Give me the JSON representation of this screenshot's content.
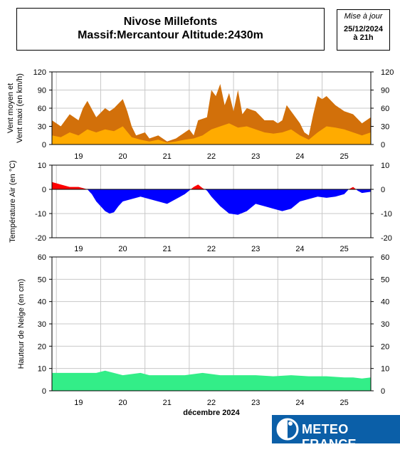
{
  "header": {
    "title_line1": "Nivose Millefonts",
    "title_line2": "Massif:Mercantour Altitude:2430m",
    "update_label": "Mise à jour",
    "update_date": "25/12/2024",
    "update_time": "à 21h"
  },
  "footer": {
    "month_label": "décembre 2024",
    "logo_text": "METEO FRANCE"
  },
  "chart_data": [
    {
      "type": "area",
      "ylabel": [
        "Vent moyen et",
        "Vent maxi (en km/h)"
      ],
      "ylim": [
        0,
        120
      ],
      "yticks": [
        0,
        30,
        60,
        90,
        120
      ],
      "x_day_labels": [
        "19",
        "20",
        "21",
        "22",
        "23",
        "24",
        "25"
      ],
      "xlim": [
        18.4,
        25.6
      ],
      "grid": true,
      "colors": {
        "max": "#d2700a",
        "mean": "#ffab00"
      },
      "series": [
        {
          "key": "max",
          "x": [
            18.4,
            18.6,
            18.8,
            19.0,
            19.1,
            19.2,
            19.4,
            19.6,
            19.7,
            19.8,
            20.0,
            20.1,
            20.2,
            20.3,
            20.5,
            20.6,
            20.8,
            21.0,
            21.2,
            21.4,
            21.5,
            21.6,
            21.7,
            21.9,
            22.0,
            22.1,
            22.2,
            22.3,
            22.4,
            22.5,
            22.6,
            22.7,
            22.8,
            23.0,
            23.2,
            23.4,
            23.5,
            23.6,
            23.7,
            23.9,
            24.0,
            24.1,
            24.2,
            24.3,
            24.4,
            24.5,
            24.6,
            24.8,
            25.0,
            25.2,
            25.4,
            25.6
          ],
          "values": [
            40,
            30,
            50,
            40,
            60,
            72,
            45,
            60,
            55,
            60,
            75,
            55,
            30,
            15,
            20,
            10,
            15,
            5,
            10,
            20,
            25,
            15,
            40,
            45,
            90,
            80,
            100,
            65,
            85,
            55,
            90,
            50,
            60,
            55,
            40,
            40,
            35,
            40,
            65,
            45,
            35,
            20,
            15,
            50,
            80,
            75,
            80,
            65,
            55,
            50,
            35,
            45
          ]
        },
        {
          "key": "mean",
          "x": [
            18.4,
            18.6,
            18.8,
            19.0,
            19.2,
            19.4,
            19.6,
            19.8,
            20.0,
            20.2,
            20.4,
            20.6,
            20.8,
            21.0,
            21.2,
            21.4,
            21.6,
            21.8,
            22.0,
            22.2,
            22.4,
            22.6,
            22.8,
            23.0,
            23.2,
            23.4,
            23.6,
            23.8,
            24.0,
            24.2,
            24.4,
            24.6,
            24.8,
            25.0,
            25.2,
            25.4,
            25.6
          ],
          "values": [
            15,
            12,
            20,
            15,
            25,
            20,
            25,
            22,
            30,
            12,
            8,
            5,
            8,
            3,
            5,
            8,
            10,
            15,
            25,
            30,
            35,
            28,
            30,
            25,
            20,
            18,
            20,
            25,
            15,
            8,
            20,
            30,
            28,
            25,
            20,
            15,
            20
          ]
        }
      ]
    },
    {
      "type": "area",
      "ylabel": [
        "Température Air (en °C)"
      ],
      "ylim": [
        -20,
        10
      ],
      "yticks": [
        -20,
        -10,
        0,
        10
      ],
      "x_day_labels": [
        "19",
        "20",
        "21",
        "22",
        "23",
        "24",
        "25"
      ],
      "xlim": [
        18.4,
        25.6
      ],
      "grid": true,
      "colors": {
        "positive": "#ff0000",
        "negative": "#0000ff"
      },
      "series": [
        {
          "key": "temperature",
          "x": [
            18.4,
            18.6,
            18.8,
            19.0,
            19.1,
            19.2,
            19.3,
            19.4,
            19.5,
            19.6,
            19.7,
            19.8,
            19.9,
            20.0,
            20.2,
            20.4,
            20.6,
            20.8,
            21.0,
            21.2,
            21.4,
            21.5,
            21.6,
            21.7,
            21.8,
            21.9,
            22.0,
            22.2,
            22.4,
            22.6,
            22.8,
            23.0,
            23.2,
            23.4,
            23.6,
            23.8,
            24.0,
            24.2,
            24.4,
            24.6,
            24.8,
            25.0,
            25.1,
            25.2,
            25.3,
            25.4,
            25.6
          ],
          "values": [
            3,
            2,
            1,
            1,
            0.5,
            0,
            -2,
            -5,
            -7,
            -9,
            -10,
            -9.5,
            -7,
            -5,
            -4,
            -3,
            -4,
            -5,
            -6,
            -4,
            -2,
            -0.5,
            1,
            2,
            0.5,
            -0.5,
            -3,
            -7,
            -10,
            -10.5,
            -9,
            -6,
            -7,
            -8,
            -9,
            -8,
            -5,
            -4,
            -3,
            -3.5,
            -3,
            -2,
            0,
            1,
            -0.5,
            -1.5,
            -1
          ]
        }
      ]
    },
    {
      "type": "area",
      "ylabel": [
        "Hauteur de Neige (en cm)"
      ],
      "ylim": [
        0,
        60
      ],
      "yticks": [
        0,
        10,
        20,
        30,
        40,
        50,
        60
      ],
      "x_day_labels": [
        "19",
        "20",
        "21",
        "22",
        "23",
        "24",
        "25"
      ],
      "xlim": [
        18.4,
        25.6
      ],
      "grid": true,
      "colors": {
        "snow": "#33ee88"
      },
      "series": [
        {
          "key": "snow_depth",
          "x": [
            18.4,
            19.0,
            19.4,
            19.6,
            20.0,
            20.4,
            20.6,
            21.0,
            21.4,
            21.8,
            22.2,
            22.6,
            23.0,
            23.4,
            23.8,
            24.2,
            24.6,
            25.0,
            25.2,
            25.4,
            25.6
          ],
          "values": [
            8,
            8,
            8,
            9,
            7,
            8,
            7,
            7,
            7,
            8,
            7,
            7,
            7,
            6.5,
            7,
            6.5,
            6.5,
            6,
            6,
            5.5,
            6
          ]
        }
      ]
    }
  ]
}
